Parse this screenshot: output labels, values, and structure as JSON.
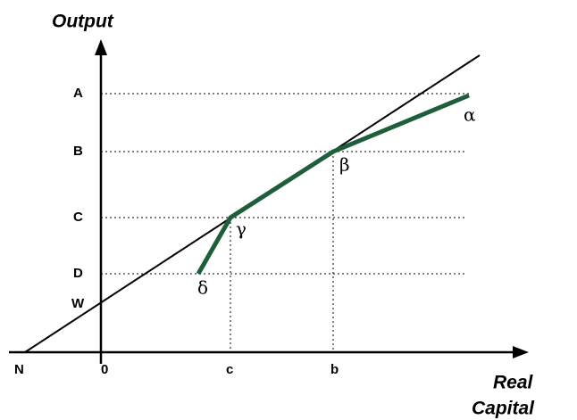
{
  "axes": {
    "y_label": "Output",
    "x_label": [
      "Real",
      "Capital"
    ]
  },
  "y_points": [
    "A",
    "B",
    "C",
    "D",
    "W"
  ],
  "x_points": [
    "N",
    "0",
    "c",
    "b"
  ],
  "curve_points": [
    "α",
    "β",
    "γ",
    "δ"
  ]
}
